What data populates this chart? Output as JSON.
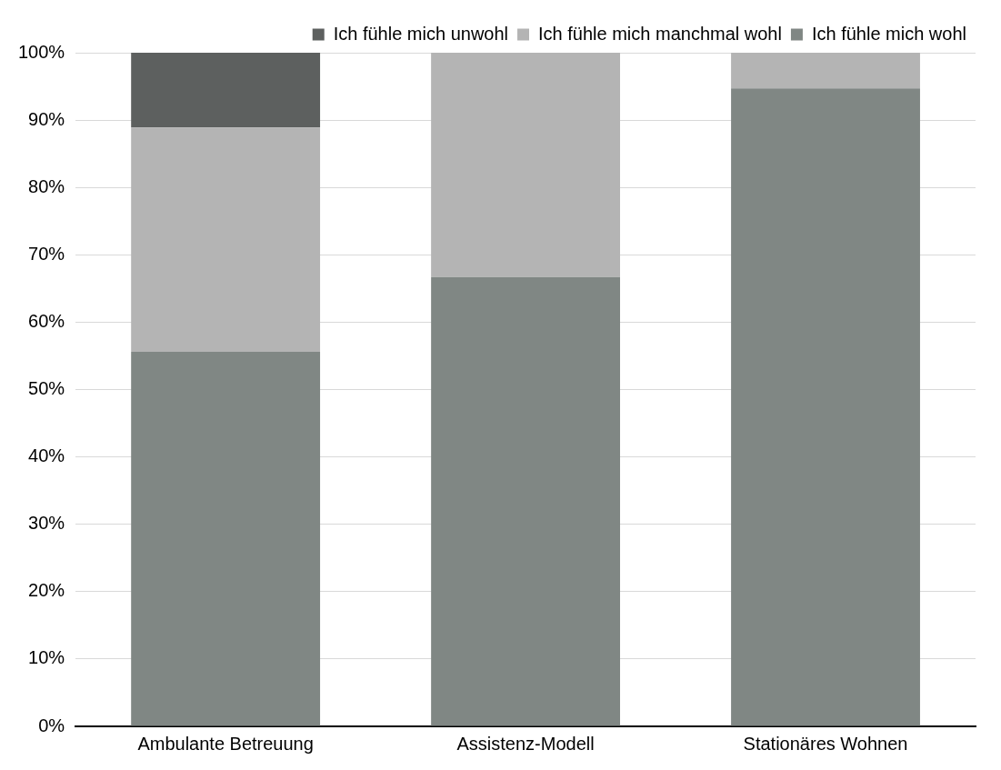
{
  "chart_data": {
    "type": "bar",
    "stacked": true,
    "categories": [
      "Ambulante Betreuung",
      "Assistenz-Modell",
      "Stationäres Wohnen"
    ],
    "series": [
      {
        "name": "Ich fühle mich wohl",
        "color": "#808784",
        "values": [
          55.6,
          66.7,
          94.7
        ]
      },
      {
        "name": "Ich fühle mich manchmal wohl",
        "color": "#b4b4b4",
        "values": [
          33.3,
          33.3,
          5.3
        ]
      },
      {
        "name": "Ich fühle mich unwohl",
        "color": "#5d605f",
        "values": [
          11.1,
          null,
          null
        ]
      }
    ],
    "ylim": [
      0,
      100
    ],
    "yticks": [
      {
        "value": 0,
        "label": "0%"
      },
      {
        "value": 10,
        "label": "10%"
      },
      {
        "value": 20,
        "label": "20%"
      },
      {
        "value": 30,
        "label": "30%"
      },
      {
        "value": 40,
        "label": "40%"
      },
      {
        "value": 50,
        "label": "50%"
      },
      {
        "value": 60,
        "label": "60%"
      },
      {
        "value": 70,
        "label": "70%"
      },
      {
        "value": 80,
        "label": "80%"
      },
      {
        "value": 90,
        "label": "90%"
      },
      {
        "value": 100,
        "label": "100%"
      }
    ],
    "grid": "y",
    "legend": "top"
  }
}
